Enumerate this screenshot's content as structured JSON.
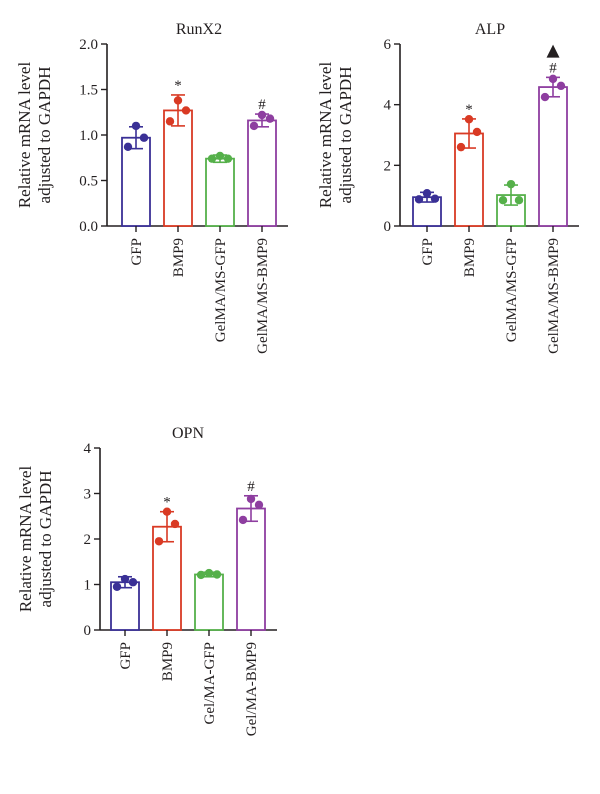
{
  "colors": {
    "GFP": "#3a3096",
    "BMP9": "#d93a24",
    "GelMA/MS-GFP": "#55b04a",
    "GelMA/MS-BMP9": "#8e3ea0",
    "axis": "#231f20"
  },
  "chart_data": [
    {
      "type": "bar",
      "title": "RunX2",
      "ylabel": [
        "Relative mRNA level",
        "adjusted to GAPDH"
      ],
      "categories": [
        "GFP",
        "BMP9",
        "GelMA/MS-GFP",
        "GelMA/MS-BMP9"
      ],
      "values": [
        0.97,
        1.27,
        0.74,
        1.16
      ],
      "errors": [
        0.12,
        0.17,
        0.04,
        0.07
      ],
      "points": [
        [
          1.1,
          0.97,
          0.87
        ],
        [
          1.38,
          1.27,
          1.15
        ],
        [
          0.77,
          0.74,
          0.74
        ],
        [
          1.22,
          1.18,
          1.1
        ]
      ],
      "ylim": [
        0,
        2.0
      ],
      "yticks": [
        "0.0",
        "0.5",
        "1.0",
        "1.5",
        "2.0"
      ],
      "annotations": [
        "",
        "*",
        "",
        "#"
      ],
      "markers": [
        "",
        "",
        "",
        ""
      ]
    },
    {
      "type": "bar",
      "title": "ALP",
      "ylabel": [
        "Relative mRNA level",
        "adjusted to GAPDH"
      ],
      "categories": [
        "GFP",
        "BMP9",
        "GelMA/MS-GFP",
        "GelMA/MS-BMP9"
      ],
      "values": [
        0.95,
        3.05,
        1.02,
        4.58
      ],
      "errors": [
        0.16,
        0.48,
        0.33,
        0.32
      ],
      "points": [
        [
          1.08,
          0.9,
          0.88
        ],
        [
          3.52,
          3.1,
          2.6
        ],
        [
          1.38,
          0.85,
          0.85
        ],
        [
          4.85,
          4.62,
          4.25
        ]
      ],
      "ylim": [
        0,
        6
      ],
      "yticks": [
        "0",
        "2",
        "4",
        "6"
      ],
      "annotations": [
        "",
        "*",
        "",
        "#"
      ],
      "markers": [
        "",
        "",
        "",
        "▲"
      ]
    },
    {
      "type": "bar",
      "title": "OPN",
      "ylabel": [
        "Relative mRNA level",
        "adjusted to GAPDH"
      ],
      "categories": [
        "GFP",
        "BMP9",
        "Gel/MA-GFP",
        "Gel/MA-BMP9"
      ],
      "values": [
        1.05,
        2.27,
        1.22,
        2.67
      ],
      "errors": [
        0.12,
        0.33,
        0.05,
        0.28
      ],
      "points": [
        [
          1.12,
          1.05,
          0.95
        ],
        [
          2.6,
          2.33,
          1.95
        ],
        [
          1.25,
          1.22,
          1.21
        ],
        [
          2.88,
          2.75,
          2.42
        ]
      ],
      "ylim": [
        0,
        4
      ],
      "yticks": [
        "0",
        "1",
        "2",
        "3",
        "4"
      ],
      "annotations": [
        "",
        "*",
        "",
        "#"
      ],
      "markers": [
        "",
        "",
        "",
        ""
      ]
    }
  ]
}
